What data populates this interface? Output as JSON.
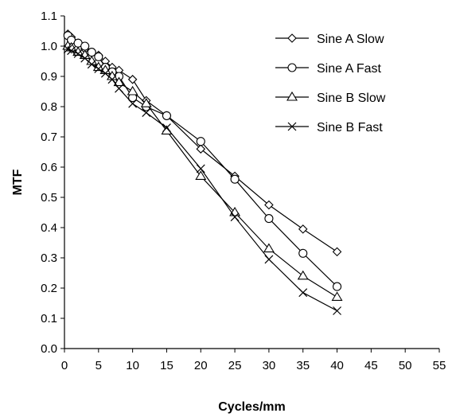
{
  "chart_data": {
    "type": "line",
    "title": "",
    "xlabel": "Cycles/mm",
    "ylabel": "MTF",
    "xlim": [
      0,
      55
    ],
    "ylim": [
      0.0,
      1.1
    ],
    "xticks": [
      0,
      5,
      10,
      15,
      20,
      25,
      30,
      35,
      40,
      45,
      50,
      55
    ],
    "yticks": [
      0.0,
      0.1,
      0.2,
      0.3,
      0.4,
      0.5,
      0.6,
      0.7,
      0.8,
      0.9,
      1.0,
      1.1
    ],
    "grid": false,
    "legend": "top-right",
    "series": [
      {
        "name": "Sine A Slow",
        "marker": "diamond",
        "x": [
          0.5,
          1,
          2,
          3,
          4,
          5,
          6,
          7,
          8,
          10,
          12,
          15,
          20,
          25,
          30,
          35,
          40
        ],
        "y": [
          1.04,
          1.03,
          1.01,
          0.99,
          0.98,
          0.97,
          0.95,
          0.93,
          0.92,
          0.89,
          0.82,
          0.77,
          0.66,
          0.57,
          0.475,
          0.395,
          0.32
        ]
      },
      {
        "name": "Sine A Fast",
        "marker": "circle",
        "x": [
          0.5,
          1,
          2,
          3,
          4,
          5,
          6,
          7,
          8,
          10,
          12,
          15,
          20,
          25,
          30,
          35,
          40
        ],
        "y": [
          1.035,
          1.02,
          1.01,
          1.0,
          0.98,
          0.965,
          0.93,
          0.915,
          0.9,
          0.83,
          0.8,
          0.77,
          0.685,
          0.56,
          0.43,
          0.315,
          0.205
        ]
      },
      {
        "name": "Sine B Slow",
        "marker": "triangle",
        "x": [
          0.5,
          1,
          2,
          3,
          4,
          5,
          6,
          7,
          8,
          10,
          12,
          15,
          20,
          25,
          30,
          35,
          40
        ],
        "y": [
          1.0,
          0.995,
          0.98,
          0.97,
          0.95,
          0.93,
          0.92,
          0.9,
          0.88,
          0.85,
          0.81,
          0.72,
          0.57,
          0.45,
          0.33,
          0.24,
          0.17
        ]
      },
      {
        "name": "Sine B Fast",
        "marker": "x",
        "x": [
          0.5,
          1,
          2,
          3,
          4,
          5,
          6,
          7,
          8,
          10,
          12,
          15,
          20,
          25,
          30,
          35,
          40
        ],
        "y": [
          0.99,
          0.985,
          0.975,
          0.96,
          0.94,
          0.925,
          0.91,
          0.89,
          0.86,
          0.81,
          0.78,
          0.73,
          0.595,
          0.435,
          0.295,
          0.185,
          0.125
        ]
      }
    ]
  }
}
